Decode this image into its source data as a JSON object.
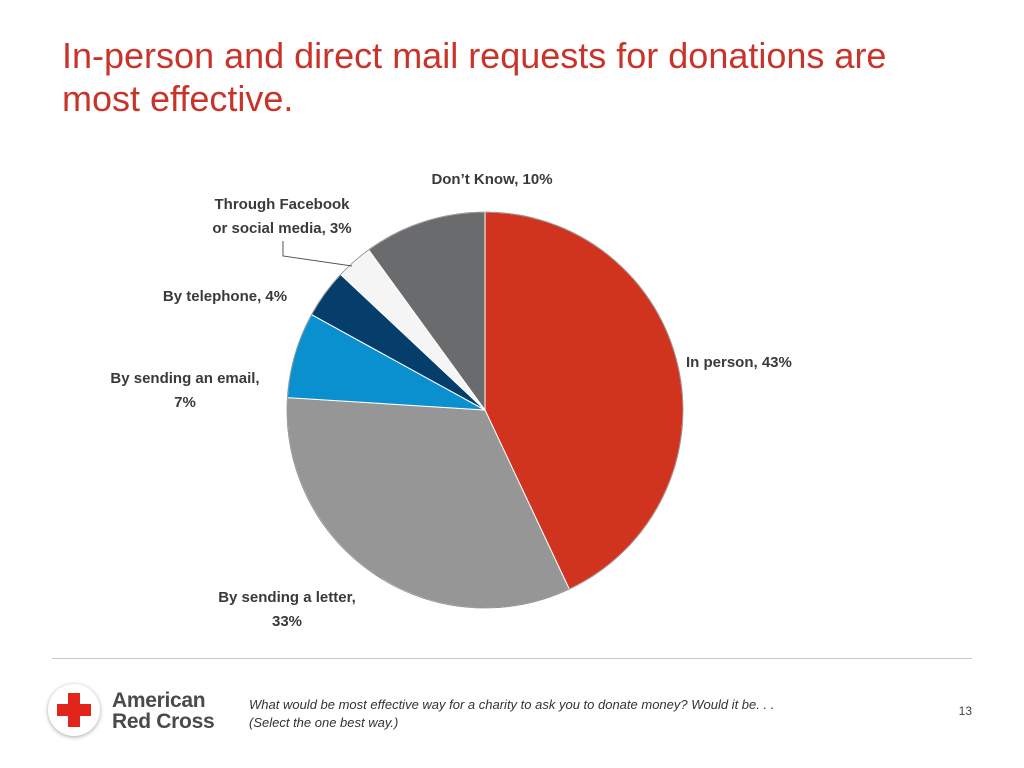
{
  "slide": {
    "title": "In-person and direct mail requests for donations are most effective.",
    "footnote_line1": "What would be most effective way for a charity to ask you to donate money?  Would it be. . .",
    "footnote_line2": "(Select the one best way.)",
    "page_number": "13"
  },
  "logo": {
    "line1": "American",
    "line2": "Red Cross",
    "icon": "red-cross-icon",
    "cross_color": "#e1251b"
  },
  "chart_data": {
    "type": "pie",
    "title": "",
    "start_angle_deg": 0,
    "direction": "clockwise",
    "slices": [
      {
        "label": "In person",
        "value": 43,
        "color": "#d0341f",
        "label_lines": [
          "In person, 43%"
        ]
      },
      {
        "label": "By sending a letter",
        "value": 33,
        "color": "#969696",
        "label_lines": [
          "By sending a letter,",
          "33%"
        ]
      },
      {
        "label": "By sending an email",
        "value": 7,
        "color": "#0a8fcf",
        "label_lines": [
          "By sending an email,",
          "7%"
        ]
      },
      {
        "label": "By telephone",
        "value": 4,
        "color": "#053e6b",
        "label_lines": [
          "By telephone, 4%"
        ]
      },
      {
        "label": "Through Facebook or social media",
        "value": 3,
        "color": "#f5f5f5",
        "label_lines": [
          "Through Facebook",
          "or social media, 3%"
        ]
      },
      {
        "label": "Don't Know",
        "value": 10,
        "color": "#6a6b6d",
        "label_lines": [
          "Don’t Know, 10%"
        ]
      }
    ]
  }
}
